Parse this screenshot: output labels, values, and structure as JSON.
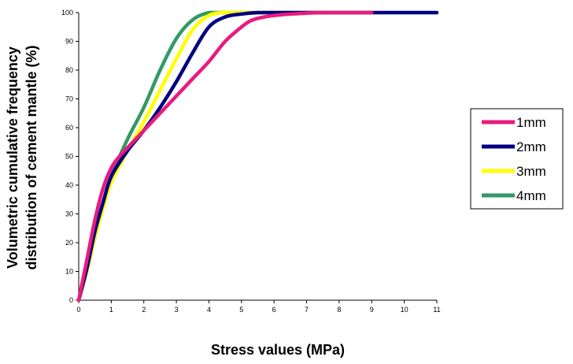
{
  "chart_data": {
    "type": "line",
    "xlabel": "Stress values (MPa)",
    "ylabel_lines": [
      "Volumetric cumulative frequency",
      "distribution of cement mantle (%)"
    ],
    "xlim": [
      0,
      11
    ],
    "ylim": [
      0,
      100
    ],
    "x_ticks": [
      "0",
      "1",
      "2",
      "3",
      "4",
      "5",
      "6",
      "7",
      "8",
      "9",
      "10",
      "11"
    ],
    "y_ticks": [
      "0",
      "10",
      "20",
      "30",
      "40",
      "50",
      "60",
      "70",
      "80",
      "90",
      "100"
    ],
    "grid": false,
    "legend_position": "right",
    "series": [
      {
        "name": "1mm",
        "color": "#ea1a7f",
        "x": [
          0,
          0.25,
          0.5,
          0.75,
          1.0,
          1.25,
          1.5,
          2.0,
          2.5,
          3.0,
          3.5,
          4.0,
          4.5,
          5.0,
          5.25,
          5.5,
          6.0,
          6.5,
          7.0,
          7.5,
          8.0,
          9.0
        ],
        "y": [
          0,
          14,
          28,
          39,
          46,
          50,
          53,
          59,
          65,
          71,
          77,
          83,
          90,
          95,
          97,
          98,
          99,
          99.5,
          99.8,
          100,
          100,
          100
        ]
      },
      {
        "name": "2mm",
        "color": "#000080",
        "x": [
          0,
          0.25,
          0.5,
          0.75,
          1.0,
          1.5,
          2.0,
          2.5,
          3.0,
          3.5,
          4.0,
          4.5,
          5.0,
          5.5,
          6.0,
          7.0,
          8.0,
          9.0,
          10.0,
          11.0
        ],
        "y": [
          0,
          11,
          24,
          34,
          43,
          52,
          59,
          67,
          76,
          86,
          95,
          98.5,
          99.5,
          100,
          100,
          100,
          100,
          100,
          100,
          100
        ]
      },
      {
        "name": "3mm",
        "color": "#ffff00",
        "x": [
          0,
          0.25,
          0.5,
          0.75,
          1.0,
          1.5,
          2.0,
          2.5,
          3.0,
          3.5,
          4.0,
          4.5,
          5.0,
          6.0,
          7.0,
          8.0,
          9.0
        ],
        "y": [
          0,
          10,
          22,
          32,
          41,
          52,
          62,
          73,
          84,
          94,
          99,
          100,
          100,
          100,
          100,
          100,
          100
        ]
      },
      {
        "name": "4mm",
        "color": "#339966",
        "x": [
          0,
          0.25,
          0.5,
          0.75,
          1.0,
          1.5,
          2.0,
          2.5,
          3.0,
          3.5,
          4.0,
          4.5,
          5.0,
          6.0,
          7.0,
          8.0,
          9.0
        ],
        "y": [
          0,
          10,
          22,
          33,
          43,
          56,
          67,
          80,
          91,
          97.5,
          100,
          100,
          100,
          100,
          100,
          100,
          100
        ]
      }
    ]
  }
}
